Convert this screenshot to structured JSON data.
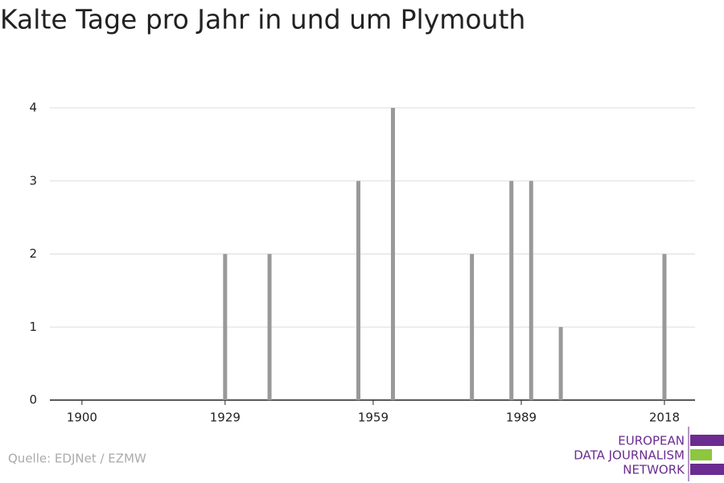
{
  "chart_data": {
    "type": "bar",
    "title": "Kalte Tage pro Jahr in und um Plymouth",
    "x": [
      1929,
      1938,
      1956,
      1963,
      1979,
      1987,
      1991,
      1997,
      2018
    ],
    "values": [
      2,
      2,
      3,
      4,
      2,
      3,
      3,
      1,
      2
    ],
    "color": "#999999",
    "xlim": [
      1893.5,
      2024.2
    ],
    "xticks": [
      1900,
      1929,
      1959,
      1989,
      2018
    ],
    "ylim": [
      0,
      4
    ],
    "yticks": [
      0,
      1,
      2,
      3,
      4
    ],
    "grid": true,
    "source": "Quelle: EDJNet / EZMW",
    "logo": [
      "EUROPEAN",
      "DATA JOURNALISM",
      "NETWORK"
    ]
  }
}
